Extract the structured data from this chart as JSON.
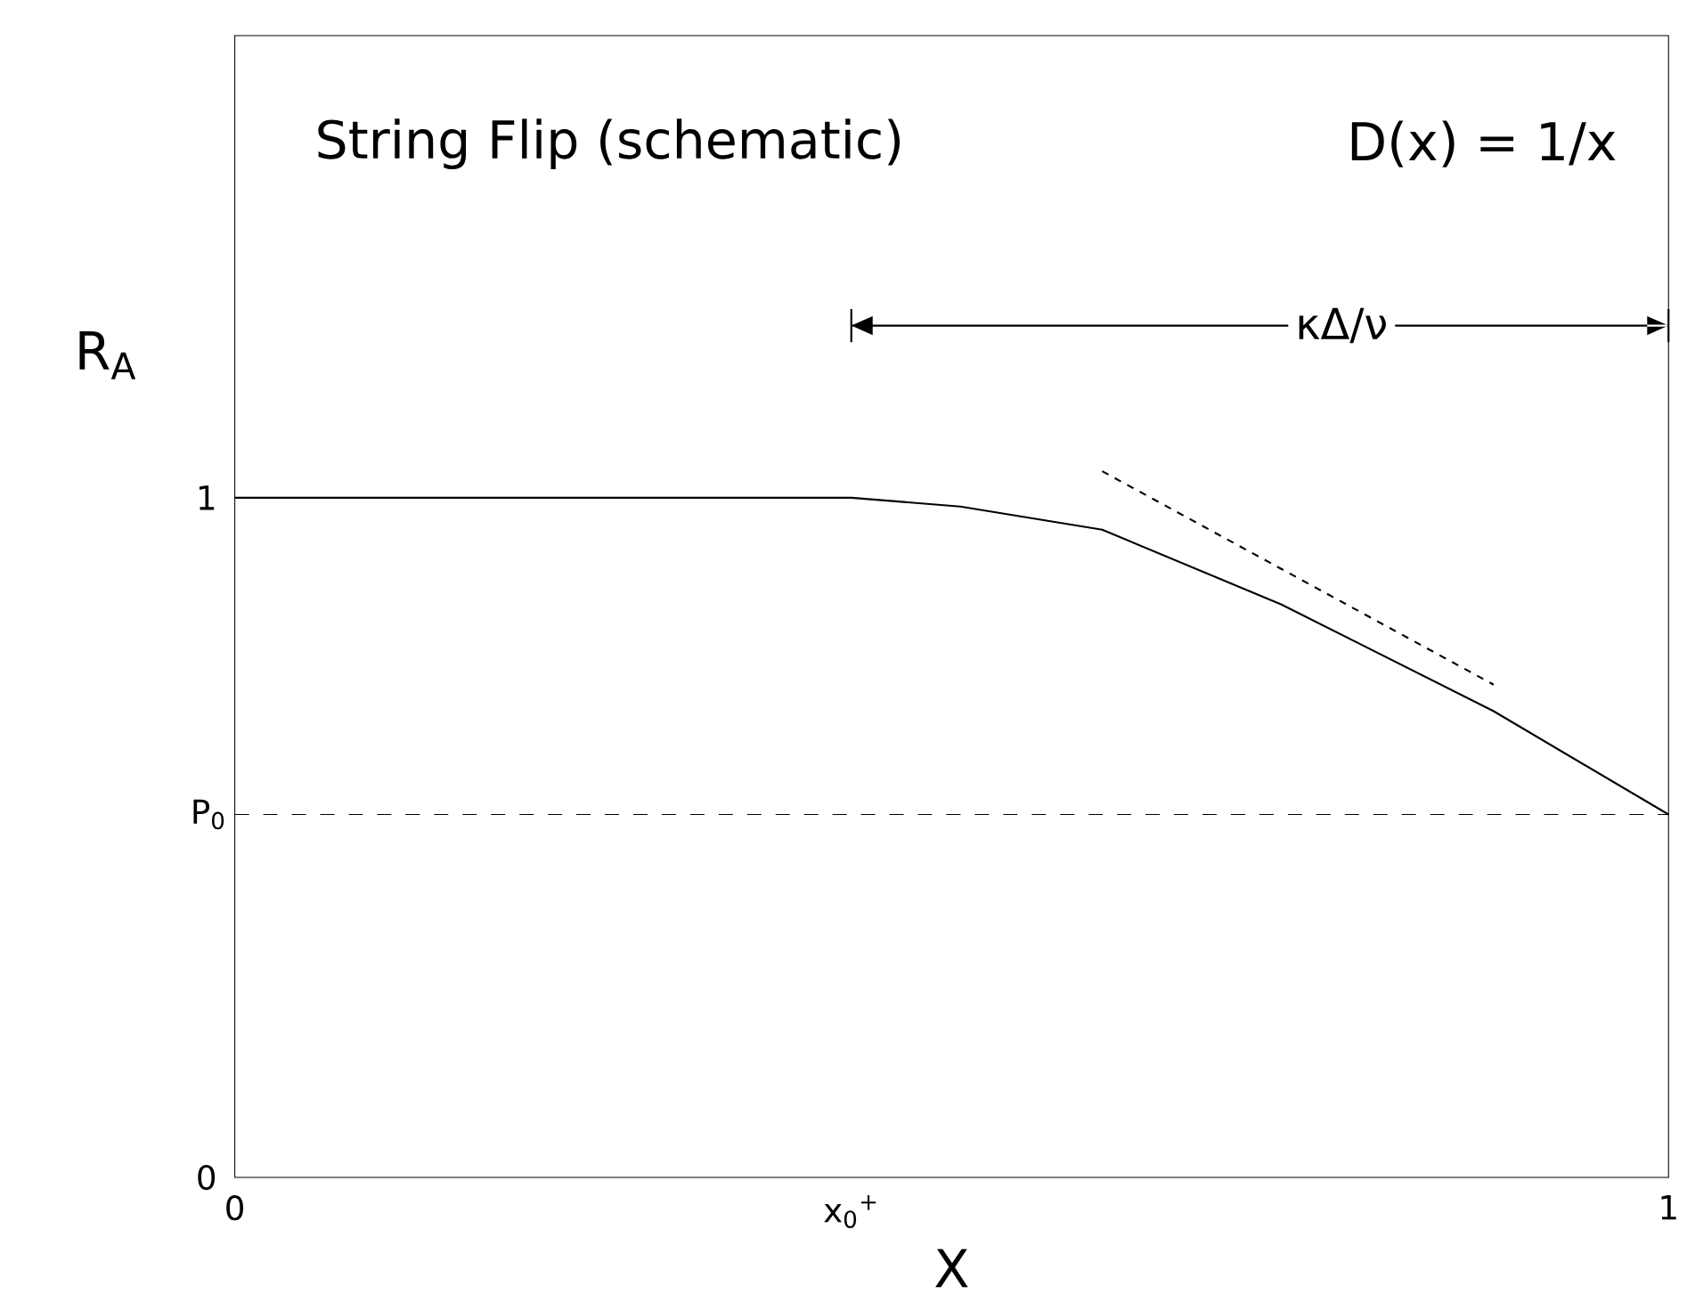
{
  "chart_data": {
    "type": "line",
    "xlabel": "X",
    "ylabel": "R$_{A}$",
    "annotations": [
      "String Flip (schematic)",
      "D(x) = 1/x",
      "κΔ/ν"
    ],
    "xlim": [
      0,
      1
    ],
    "ylim": [
      0,
      1.68
    ],
    "xticks": [
      0,
      {
        "value": 0.43,
        "label": "x$_{0}$$^{+}$"
      },
      1
    ],
    "yticks": [
      0,
      1
    ],
    "ref_lines": [
      {
        "axis": "y",
        "value": 0.534,
        "line_style": "dashed",
        "label": "P$_{0}$"
      }
    ],
    "series": [
      {
        "color": "#000000",
        "line_style": "solid",
        "x": [
          0,
          0.2,
          0.43,
          0.506,
          0.605,
          0.73,
          0.878,
          1
        ],
        "values": [
          1,
          1,
          1,
          0.987,
          0.953,
          0.843,
          0.686,
          0.534
        ]
      },
      {
        "color": "#000000",
        "line_style": "dashed",
        "x": [
          0.605,
          0.878
        ],
        "values": [
          1.039,
          0.725
        ]
      }
    ]
  }
}
